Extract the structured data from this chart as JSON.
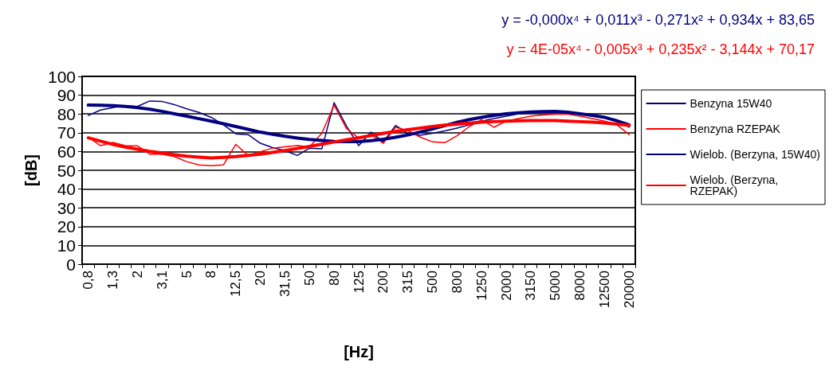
{
  "chart_data": {
    "type": "line",
    "xlabel": "[Hz]",
    "ylabel": "[dB]",
    "categories": [
      "0,8",
      null,
      "1,3",
      null,
      "2",
      null,
      "3,1",
      null,
      "5",
      null,
      "8",
      null,
      "12,5",
      null,
      "20",
      null,
      "31,5",
      null,
      "50",
      null,
      "80",
      null,
      "125",
      null,
      "200",
      null,
      "315",
      null,
      "500",
      null,
      "800",
      null,
      "1250",
      null,
      "2000",
      null,
      "3150",
      null,
      "5000",
      null,
      "8000",
      null,
      "12500",
      null,
      "20000"
    ],
    "series": [
      {
        "name": "Benzyna 15W40",
        "color": "#000080",
        "values": [
          79.2,
          82.1,
          83.4,
          84.4,
          84,
          86.9,
          86.7,
          85,
          82.7,
          80.8,
          78.2,
          74.2,
          69.4,
          69,
          64.4,
          62.1,
          60.5,
          57.9,
          61.8,
          61.4,
          86,
          73.6,
          63.1,
          70.3,
          65.1,
          73.9,
          69.7,
          68.6,
          69.7,
          71,
          72.5,
          74.2,
          76.2,
          77.5,
          78.8,
          80.1,
          81,
          81.4,
          81.4,
          81,
          80.1,
          79.1,
          78.4,
          76.9,
          72.9
        ]
      },
      {
        "name": "Benzyna RZEPAK",
        "color": "#ff0000",
        "values": [
          67.7,
          63.1,
          64.8,
          63.1,
          63,
          58.6,
          58.6,
          57.3,
          54.6,
          52.9,
          52.4,
          52.9,
          63.8,
          57.9,
          59.9,
          61.8,
          62.5,
          63.1,
          62.5,
          69.7,
          84.7,
          72.3,
          67.1,
          69,
          64.4,
          72.9,
          71.2,
          67.7,
          65.1,
          64.7,
          68.4,
          73.3,
          76.9,
          72.9,
          76.2,
          77.5,
          78.8,
          79.5,
          79.9,
          79.9,
          78.8,
          77.5,
          76.2,
          74.2,
          69
        ]
      },
      {
        "name": "Wielob. (Berzyna, 15W40)",
        "color": "#000080",
        "values": [
          84.7,
          84.6,
          84.4,
          84,
          83.4,
          82.5,
          81.4,
          80.1,
          78.8,
          77.5,
          76.2,
          74.8,
          73.3,
          71.8,
          70.3,
          69.2,
          68.1,
          67.2,
          66.4,
          65.9,
          65.4,
          65.3,
          65.3,
          65.8,
          66.5,
          67.6,
          68.8,
          70.4,
          72,
          73.8,
          75.6,
          77,
          78.2,
          79.2,
          80.1,
          80.6,
          81,
          81.3,
          81.4,
          80.9,
          80.1,
          79.2,
          78.2,
          76.3,
          74.2
        ]
      },
      {
        "name": "Wielob. (Berzyna, RZEPAK)",
        "color": "#ff0000",
        "values": [
          67.3,
          65.5,
          63.8,
          62.4,
          61.2,
          60.1,
          59.2,
          58.3,
          57.5,
          57,
          56.6,
          56.9,
          57.3,
          57.9,
          58.6,
          59.5,
          60.5,
          61.6,
          62.7,
          63.9,
          65.1,
          66.2,
          67.3,
          68.5,
          69.7,
          70.7,
          71.6,
          72.5,
          73.3,
          74,
          74.6,
          75.1,
          75.6,
          75.9,
          76.2,
          76.4,
          76.5,
          76.5,
          76.5,
          76.2,
          75.9,
          75.6,
          75.2,
          74.6,
          73.9
        ]
      }
    ],
    "ylim": [
      0,
      100
    ],
    "yticks": [
      0,
      10,
      20,
      30,
      40,
      50,
      60,
      70,
      80,
      90,
      100
    ],
    "grid": "y",
    "legend": "right",
    "marker": "none",
    "annotations": [
      "y = -0,000x⁴ + 0,011x³ - 0,271x² + 0,934x + 83,65",
      "y = 4E-05x⁴ - 0,005x³ + 0,235x² - 3,144x + 70,17"
    ]
  }
}
